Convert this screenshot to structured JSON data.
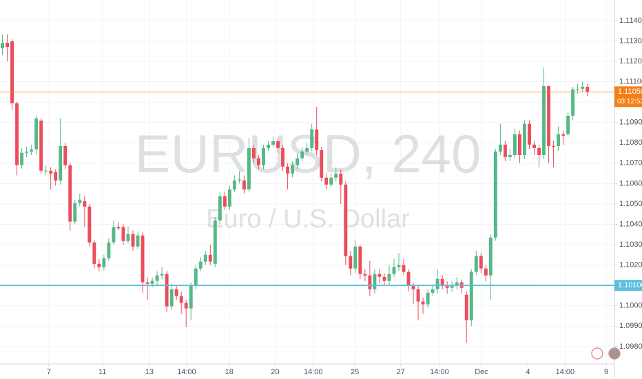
{
  "chart_data": {
    "type": "candlestick",
    "watermark_title": "EURUSD, 240",
    "watermark_subtitle": "Euro / U.S. Dollar",
    "up_color": "#53b987",
    "down_color": "#eb4d5c",
    "grid": true,
    "xlim": [
      -0.5,
      126.6
    ],
    "ylim": [
      1.09715,
      1.11501
    ],
    "yticks": [
      {
        "value": 1.098,
        "label": "1.09800"
      },
      {
        "value": 1.099,
        "label": "1.09900"
      },
      {
        "value": 1.1,
        "label": "1.10000"
      },
      {
        "value": 1.101,
        "label": "1.10100"
      },
      {
        "value": 1.102,
        "label": "1.10200"
      },
      {
        "value": 1.103,
        "label": "1.10300"
      },
      {
        "value": 1.104,
        "label": "1.10400"
      },
      {
        "value": 1.105,
        "label": "1.10500"
      },
      {
        "value": 1.106,
        "label": "1.10600"
      },
      {
        "value": 1.107,
        "label": "1.10700"
      },
      {
        "value": 1.108,
        "label": "1.10800"
      },
      {
        "value": 1.109,
        "label": "1.10900"
      },
      {
        "value": 1.11,
        "label": "1.11000"
      },
      {
        "value": 1.111,
        "label": "1.11100"
      },
      {
        "value": 1.112,
        "label": "1.11200"
      },
      {
        "value": 1.113,
        "label": "1.11300"
      },
      {
        "value": 1.114,
        "label": "1.11400"
      }
    ],
    "xticks": [
      {
        "value": 9.6,
        "label": "7"
      },
      {
        "value": 20.7,
        "label": "11"
      },
      {
        "value": 30.4,
        "label": "13"
      },
      {
        "value": 38.1,
        "label": "14:00"
      },
      {
        "value": 46.9,
        "label": "18"
      },
      {
        "value": 56.4,
        "label": "20"
      },
      {
        "value": 64.3,
        "label": "14:00"
      },
      {
        "value": 72.9,
        "label": "25"
      },
      {
        "value": 82.4,
        "label": "27"
      },
      {
        "value": 90.4,
        "label": "14:00"
      },
      {
        "value": 99.1,
        "label": "Dec"
      },
      {
        "value": 108.7,
        "label": "4"
      },
      {
        "value": 116.4,
        "label": "14:00"
      },
      {
        "value": 124.9,
        "label": "9"
      }
    ],
    "last_price": {
      "value": 1.1105,
      "label": "1.11050",
      "color": "#f57f17"
    },
    "countdown": "03:12:53",
    "level_line": {
      "value": 1.101,
      "label": "1.10100",
      "color": "#5bc0de"
    },
    "open": [
      1.11264,
      1.11291,
      1.11298,
      1.10994,
      1.1069,
      1.10751,
      1.10757,
      1.10768,
      1.10909,
      1.10663,
      1.10663,
      1.10656,
      1.10615,
      1.10784,
      1.1069,
      1.10413,
      1.10504,
      1.10514,
      1.10487,
      1.10311,
      1.10206,
      1.1019,
      1.10233,
      1.10311,
      1.10386,
      1.10386,
      1.10318,
      1.10352,
      1.10291,
      1.10345,
      1.10115,
      1.10108,
      1.10122,
      1.10149,
      1.10156,
      1.09997,
      1.10081,
      1.10048,
      1.10014,
      1.09987,
      1.10098,
      1.10183,
      1.10217,
      1.1025,
      1.10206,
      1.10419,
      1.10538,
      1.10487,
      1.10571,
      1.10615,
      1.10615,
      1.10571,
      1.10774,
      1.10724,
      1.1069,
      1.10774,
      1.10791,
      1.10808,
      1.10774,
      1.10683,
      1.10649,
      1.1069,
      1.10724,
      1.10757,
      1.10774,
      1.10866,
      1.10764,
      1.10629,
      1.10595,
      1.10629,
      1.10649,
      1.10595,
      1.10244,
      1.10183,
      1.10291,
      1.10156,
      1.10149,
      1.10081,
      1.10156,
      1.10142,
      1.10122,
      1.10156,
      1.1019,
      1.102,
      1.10166,
      1.10098,
      1.10081,
      1.10021,
      1.10007,
      1.10064,
      1.10081,
      1.10132,
      1.10098,
      1.10088,
      1.10098,
      1.10115,
      1.10054,
      1.09929,
      1.10166,
      1.10244,
      1.10183,
      1.10149,
      1.10335,
      1.10757,
      1.10791,
      1.1073,
      1.1074,
      1.10842,
      1.1074,
      1.10893,
      1.10791,
      1.10774,
      1.1074,
      1.11078,
      1.10784,
      1.10784,
      1.10842,
      1.10842,
      1.10933,
      1.11062,
      1.11065,
      1.11075
    ],
    "high": [
      1.11332,
      1.11332,
      1.11308,
      1.11001,
      1.10774,
      1.1078,
      1.1079,
      1.10933,
      1.1092,
      1.1069,
      1.1068,
      1.1067,
      1.1092,
      1.108,
      1.107,
      1.1052,
      1.1055,
      1.1054,
      1.105,
      1.1032,
      1.1023,
      1.1025,
      1.1033,
      1.10419,
      1.1041,
      1.104,
      1.1039,
      1.1037,
      1.1036,
      1.1036,
      1.1014,
      1.1014,
      1.1017,
      1.1019,
      1.1017,
      1.1011,
      1.101,
      1.1007,
      1.1003,
      1.10115,
      1.102,
      1.1024,
      1.1027,
      1.103,
      1.10436,
      1.1056,
      1.1056,
      1.1059,
      1.1064,
      1.1066,
      1.1064,
      1.10825,
      1.1079,
      1.1074,
      1.1079,
      1.1081,
      1.1083,
      1.1082,
      1.1079,
      1.107,
      1.1071,
      1.1075,
      1.1078,
      1.108,
      1.10893,
      1.10977,
      1.1078,
      1.1065,
      1.1065,
      1.1068,
      1.1067,
      1.1061,
      1.1027,
      1.1032,
      1.103,
      1.1018,
      1.1022,
      1.1018,
      1.1018,
      1.1016,
      1.102,
      1.1023,
      1.1026,
      1.1023,
      1.1018,
      1.1011,
      1.101,
      1.1004,
      1.1008,
      1.101,
      1.1018,
      1.1015,
      1.1012,
      1.1012,
      1.1014,
      1.1013,
      1.1007,
      1.1018,
      1.1027,
      1.1026,
      1.102,
      1.1035,
      1.1077,
      1.10893,
      1.1081,
      1.1077,
      1.1087,
      1.1086,
      1.1091,
      1.1091,
      1.1081,
      1.1079,
      1.1117,
      1.1108,
      1.1081,
      1.1088,
      1.1086,
      1.1095,
      1.11075,
      1.1109,
      1.111,
      1.1109
    ],
    "low": [
      1.11231,
      1.112,
      1.1096,
      1.10639,
      1.10673,
      1.1073,
      1.1074,
      1.1074,
      1.10649,
      1.1064,
      1.10571,
      1.1059,
      1.10595,
      1.1067,
      1.10369,
      1.104,
      1.1049,
      1.10386,
      1.1029,
      1.10183,
      1.1017,
      1.10175,
      1.1022,
      1.103,
      1.1037,
      1.103,
      1.10305,
      1.1027,
      1.1028,
      1.10064,
      1.1003,
      1.1009,
      1.101,
      1.1013,
      1.0997,
      1.0998,
      1.1003,
      1.0996,
      1.09895,
      1.09929,
      1.1008,
      1.1017,
      1.102,
      1.102,
      1.1019,
      1.104,
      1.1047,
      1.1047,
      1.1056,
      1.106,
      1.1055,
      1.1056,
      1.107,
      1.1067,
      1.1067,
      1.1076,
      1.1078,
      1.1075,
      1.1066,
      1.10571,
      1.1063,
      1.1067,
      1.1071,
      1.1074,
      1.1076,
      1.1074,
      1.1061,
      1.1057,
      1.1058,
      1.1061,
      1.105,
      1.102,
      1.1015,
      1.1016,
      1.1013,
      1.1012,
      1.10048,
      1.1006,
      1.1011,
      1.101,
      1.101,
      1.1014,
      1.1017,
      1.1015,
      1.1007,
      1.1001,
      1.09929,
      1.0996,
      1.0999,
      1.1005,
      1.1006,
      1.1008,
      1.1006,
      1.1007,
      1.1008,
      1.1006,
      1.09818,
      1.099,
      1.1015,
      1.1016,
      1.1012,
      1.10031,
      1.1032,
      1.1074,
      1.1071,
      1.1071,
      1.1072,
      1.107,
      1.1072,
      1.1077,
      1.1074,
      1.1068,
      1.1072,
      1.107,
      1.1068,
      1.1076,
      1.1079,
      1.1083,
      1.1091,
      1.1104,
      1.1105,
      1.1103
    ],
    "close": [
      1.11291,
      1.11271,
      1.10994,
      1.1069,
      1.10751,
      1.10757,
      1.10768,
      1.1092,
      1.10663,
      1.10663,
      1.10649,
      1.10615,
      1.10784,
      1.1069,
      1.10413,
      1.10504,
      1.10521,
      1.10487,
      1.10311,
      1.10206,
      1.1019,
      1.10233,
      1.10311,
      1.10386,
      1.1038,
      1.10318,
      1.10352,
      1.10291,
      1.10345,
      1.10115,
      1.10108,
      1.10122,
      1.10149,
      1.10156,
      1.09997,
      1.10081,
      1.10048,
      1.10014,
      1.09987,
      1.10098,
      1.10183,
      1.10217,
      1.1025,
      1.10217,
      1.10419,
      1.10538,
      1.10487,
      1.10571,
      1.10615,
      1.1062,
      1.10571,
      1.10774,
      1.10724,
      1.1069,
      1.10774,
      1.10791,
      1.10808,
      1.10774,
      1.10683,
      1.10649,
      1.1069,
      1.10724,
      1.10757,
      1.10774,
      1.10866,
      1.10764,
      1.10629,
      1.10595,
      1.10629,
      1.10649,
      1.10595,
      1.10244,
      1.10183,
      1.10291,
      1.10156,
      1.10149,
      1.10081,
      1.10156,
      1.10142,
      1.10122,
      1.10156,
      1.1019,
      1.102,
      1.10166,
      1.10098,
      1.10081,
      1.10021,
      1.10007,
      1.10064,
      1.10081,
      1.10132,
      1.10098,
      1.10088,
      1.10098,
      1.10115,
      1.10088,
      1.09929,
      1.10166,
      1.10244,
      1.10183,
      1.10149,
      1.10335,
      1.10757,
      1.10791,
      1.1073,
      1.1074,
      1.10842,
      1.1074,
      1.10893,
      1.10791,
      1.10774,
      1.1074,
      1.11078,
      1.10784,
      1.1078,
      1.10842,
      1.10835,
      1.10933,
      1.11062,
      1.11065,
      1.11075,
      1.1105
    ]
  }
}
